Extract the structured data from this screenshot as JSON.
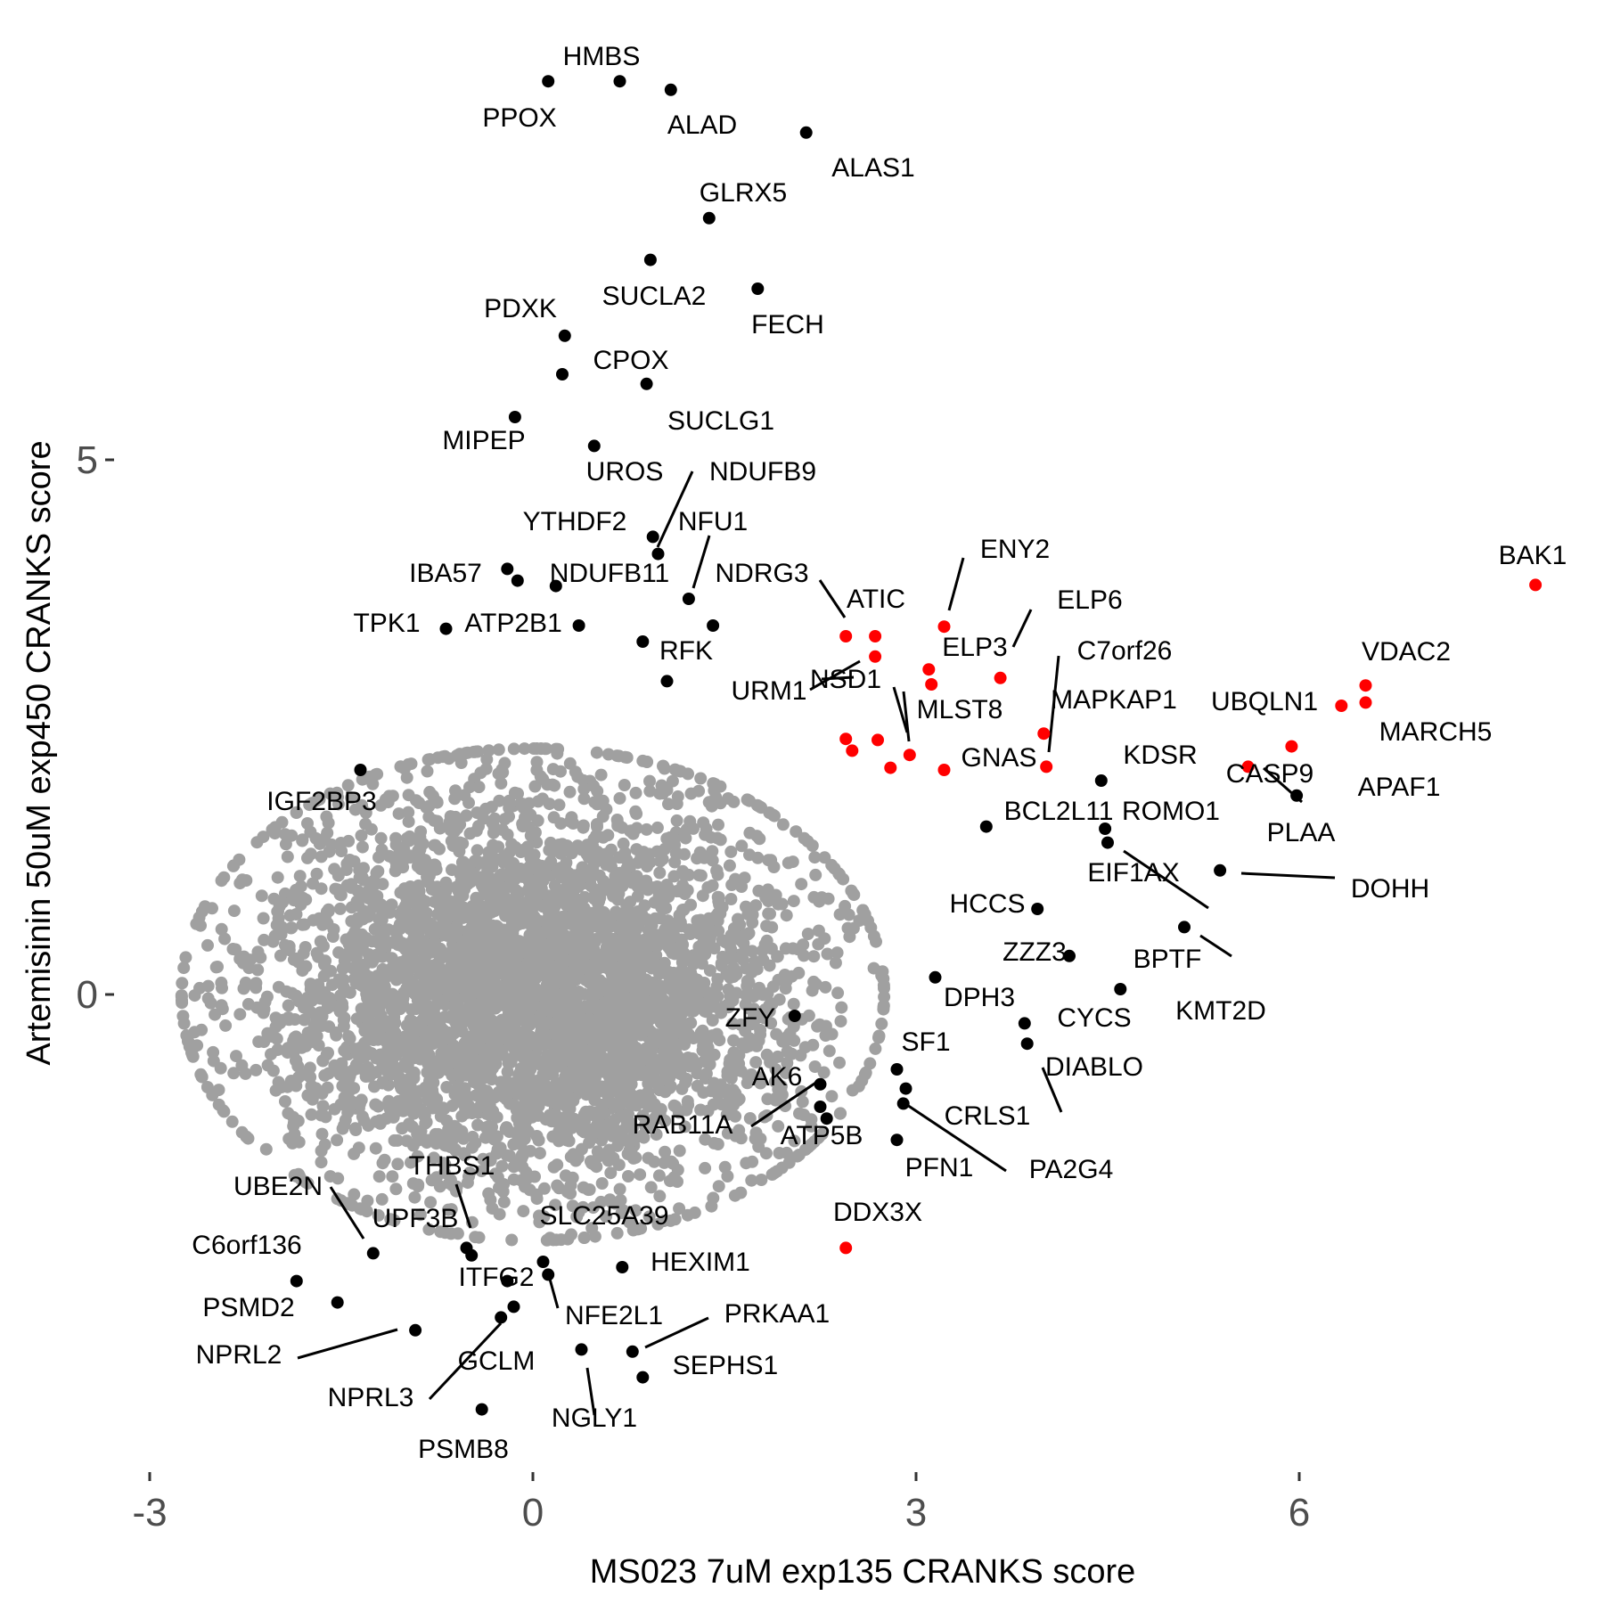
{
  "chart_data": {
    "type": "scatter",
    "title": "",
    "xlabel": "MS023 7uM exp135 CRANKS score",
    "ylabel": "Artemisinin 50uM exp450 CRANKS score",
    "xlim": [
      -3.3,
      8.4
    ],
    "ylim": [
      -4.5,
      8.8
    ],
    "x_ticks": [
      "-3",
      "0",
      "3",
      "6"
    ],
    "y_ticks": [
      "0",
      "5"
    ],
    "grid": false,
    "legend": "none",
    "colors": {
      "background": "#ffffff",
      "cloud": "#a0a0a0",
      "hit": "#000000",
      "highlight": "#ff0000"
    },
    "background_cloud": {
      "description": "dense grey cloud of unlabeled genes",
      "center": [
        0,
        0
      ],
      "approx_sd": [
        1.1,
        0.95
      ]
    },
    "series": [
      {
        "color": "black",
        "points": [
          {
            "label": "HMBS",
            "x": 0.68,
            "y": 8.54
          },
          {
            "label": "PPOX",
            "x": 0.12,
            "y": 8.54
          },
          {
            "label": "ALAD",
            "x": 1.08,
            "y": 8.46
          },
          {
            "label": "ALAS1",
            "x": 2.14,
            "y": 8.06
          },
          {
            "label": "GLRX5",
            "x": 1.38,
            "y": 7.26
          },
          {
            "label": "SUCLA2",
            "x": 0.92,
            "y": 6.87
          },
          {
            "label": "FECH",
            "x": 1.76,
            "y": 6.6
          },
          {
            "label": "PDXK",
            "x": 0.25,
            "y": 6.16
          },
          {
            "label": "CPOX",
            "x": 0.23,
            "y": 5.8
          },
          {
            "label": "SUCLG1",
            "x": 0.89,
            "y": 5.71
          },
          {
            "label": "MIPEP",
            "x": -0.14,
            "y": 5.4
          },
          {
            "label": "UROS",
            "x": 0.48,
            "y": 5.13
          },
          {
            "label": "NDUFB9",
            "x": 0.94,
            "y": 4.28
          },
          {
            "label": "YTHDF2",
            "x": 0.98,
            "y": 4.12
          },
          {
            "label": "IBA57",
            "x": -0.2,
            "y": 3.98
          },
          {
            "label": "NDUFB11",
            "x": -0.12,
            "y": 3.87
          },
          {
            "label": "",
            "x": 0.18,
            "y": 3.82
          },
          {
            "label": "NFU1",
            "x": 1.22,
            "y": 3.7
          },
          {
            "label": "TPK1",
            "x": -0.68,
            "y": 3.42
          },
          {
            "label": "ATP2B1",
            "x": 0.36,
            "y": 3.45
          },
          {
            "label": "NDRG3",
            "x": 1.41,
            "y": 3.45
          },
          {
            "label": "RFK",
            "x": 0.86,
            "y": 3.3
          },
          {
            "label": "URM1",
            "x": 1.05,
            "y": 2.93
          },
          {
            "label": "IGF2BP3",
            "x": -1.35,
            "y": 2.1
          },
          {
            "label": "KDSR",
            "x": 4.45,
            "y": 2.0
          },
          {
            "label": "APAF1",
            "x": 5.98,
            "y": 1.86
          },
          {
            "label": "BCL2L11",
            "x": 3.55,
            "y": 1.57
          },
          {
            "label": "ROMO1",
            "x": 4.48,
            "y": 1.55
          },
          {
            "label": "EIF1AX",
            "x": 4.5,
            "y": 1.42
          },
          {
            "label": "DOHH",
            "x": 5.38,
            "y": 1.16
          },
          {
            "label": "HCCS",
            "x": 3.95,
            "y": 0.8
          },
          {
            "label": "BPTF",
            "x": 5.1,
            "y": 0.63
          },
          {
            "label": "ZZZ3",
            "x": 4.2,
            "y": 0.36
          },
          {
            "label": "KMT2D",
            "x": 4.6,
            "y": 0.05
          },
          {
            "label": "DPH3",
            "x": 3.15,
            "y": 0.16
          },
          {
            "label": "CYCS",
            "x": 3.85,
            "y": -0.27
          },
          {
            "label": "DIABLO",
            "x": 3.87,
            "y": -0.46
          },
          {
            "label": "SF1",
            "x": 2.85,
            "y": -0.7
          },
          {
            "label": "CRLS1",
            "x": 2.92,
            "y": -0.88
          },
          {
            "label": "PA2G4",
            "x": 2.9,
            "y": -1.02
          },
          {
            "label": "PFN1",
            "x": 2.85,
            "y": -1.36
          },
          {
            "label": "ZFY",
            "x": 2.05,
            "y": -0.2
          },
          {
            "label": "AK6",
            "x": 2.25,
            "y": -0.84
          },
          {
            "label": "RAB11A",
            "x": 2.25,
            "y": -1.05
          },
          {
            "label": "ATP5B",
            "x": 2.3,
            "y": -1.16
          },
          {
            "label": "UBE2N",
            "x": -1.25,
            "y": -2.42
          },
          {
            "label": "C6orf136",
            "x": -1.85,
            "y": -2.68
          },
          {
            "label": "PSMD2",
            "x": -1.53,
            "y": -2.88
          },
          {
            "label": "NPRL2",
            "x": -0.92,
            "y": -3.14
          },
          {
            "label": "THBS1",
            "x": -0.48,
            "y": -2.44
          },
          {
            "label": "UPF3B",
            "x": -0.52,
            "y": -2.37
          },
          {
            "label": "ITFG2",
            "x": -0.2,
            "y": -2.68
          },
          {
            "label": "GCLM",
            "x": -0.15,
            "y": -2.92
          },
          {
            "label": "NPRL3",
            "x": -0.25,
            "y": -3.02
          },
          {
            "label": "SLC25A39",
            "x": 0.08,
            "y": -2.5
          },
          {
            "label": "NFE2L1",
            "x": 0.12,
            "y": -2.62
          },
          {
            "label": "HEXIM1",
            "x": 0.7,
            "y": -2.55
          },
          {
            "label": "NGLY1",
            "x": 0.38,
            "y": -3.32
          },
          {
            "label": "PRKAA1",
            "x": 0.78,
            "y": -3.34
          },
          {
            "label": "SEPHS1",
            "x": 0.86,
            "y": -3.58
          },
          {
            "label": "PSMB8",
            "x": -0.4,
            "y": -3.88
          }
        ]
      },
      {
        "color": "red",
        "points": [
          {
            "label": "BAK1",
            "x": 7.85,
            "y": 3.83
          },
          {
            "label": "ATIC",
            "x": 2.45,
            "y": 3.35
          },
          {
            "label": "",
            "x": 2.68,
            "y": 3.35
          },
          {
            "label": "",
            "x": 2.68,
            "y": 3.16
          },
          {
            "label": "ENY2",
            "x": 3.22,
            "y": 3.44
          },
          {
            "label": "ELP3",
            "x": 3.1,
            "y": 3.04
          },
          {
            "label": "",
            "x": 3.12,
            "y": 2.9
          },
          {
            "label": "ELP6",
            "x": 3.66,
            "y": 2.96
          },
          {
            "label": "NSD1",
            "x": 2.45,
            "y": 2.39
          },
          {
            "label": "",
            "x": 2.5,
            "y": 2.28
          },
          {
            "label": "",
            "x": 2.7,
            "y": 2.38
          },
          {
            "label": "",
            "x": 2.8,
            "y": 2.12
          },
          {
            "label": "MLST8",
            "x": 2.95,
            "y": 2.24
          },
          {
            "label": "GNAS",
            "x": 3.22,
            "y": 2.1
          },
          {
            "label": "C7orf26",
            "x": 4.0,
            "y": 2.44
          },
          {
            "label": "MAPKAP1",
            "x": 4.02,
            "y": 2.13
          },
          {
            "label": "VDAC2",
            "x": 6.52,
            "y": 2.89
          },
          {
            "label": "MARCH5",
            "x": 6.52,
            "y": 2.73
          },
          {
            "label": "UBQLN1",
            "x": 6.33,
            "y": 2.7
          },
          {
            "label": "CASP9",
            "x": 5.94,
            "y": 2.32
          },
          {
            "label": "PLAA",
            "x": 5.6,
            "y": 2.13
          },
          {
            "label": "DDX3X",
            "x": 2.45,
            "y": -2.37
          }
        ]
      }
    ]
  }
}
